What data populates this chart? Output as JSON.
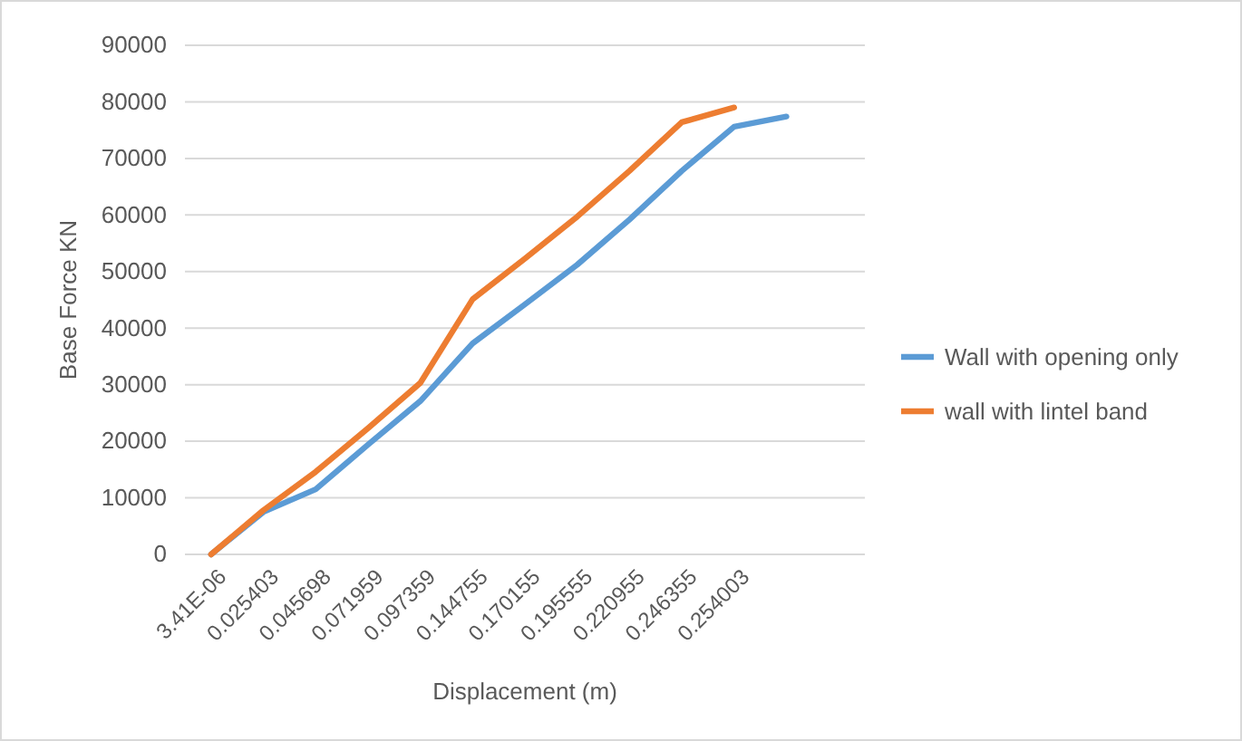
{
  "chart_data": {
    "type": "line",
    "xlabel": "Displacement (m)",
    "ylabel": "Base Force KN",
    "categories": [
      "3.41E-06",
      "0.025403",
      "0.045698",
      "0.071959",
      "0.097359",
      "0.144755",
      "0.170155",
      "0.195555",
      "0.220955",
      "0.246355",
      "0.254003",
      null,
      null
    ],
    "series": [
      {
        "name": "Wall with opening only",
        "color": "#5b9bd5",
        "values": [
          0,
          7500,
          11500,
          19400,
          27100,
          37300,
          44200,
          51200,
          59200,
          67800,
          75600,
          77400,
          null
        ]
      },
      {
        "name": "wall with lintel band",
        "color": "#ed7d31",
        "values": [
          0,
          7800,
          14600,
          22300,
          30300,
          45100,
          52300,
          59700,
          67800,
          76400,
          79000,
          null,
          null
        ]
      }
    ],
    "ylim": [
      0,
      90000
    ],
    "yticks": [
      0,
      10000,
      20000,
      30000,
      40000,
      50000,
      60000,
      70000,
      80000,
      90000
    ],
    "grid": "y",
    "legend": "right",
    "marker": "none",
    "line_style": "solid"
  }
}
